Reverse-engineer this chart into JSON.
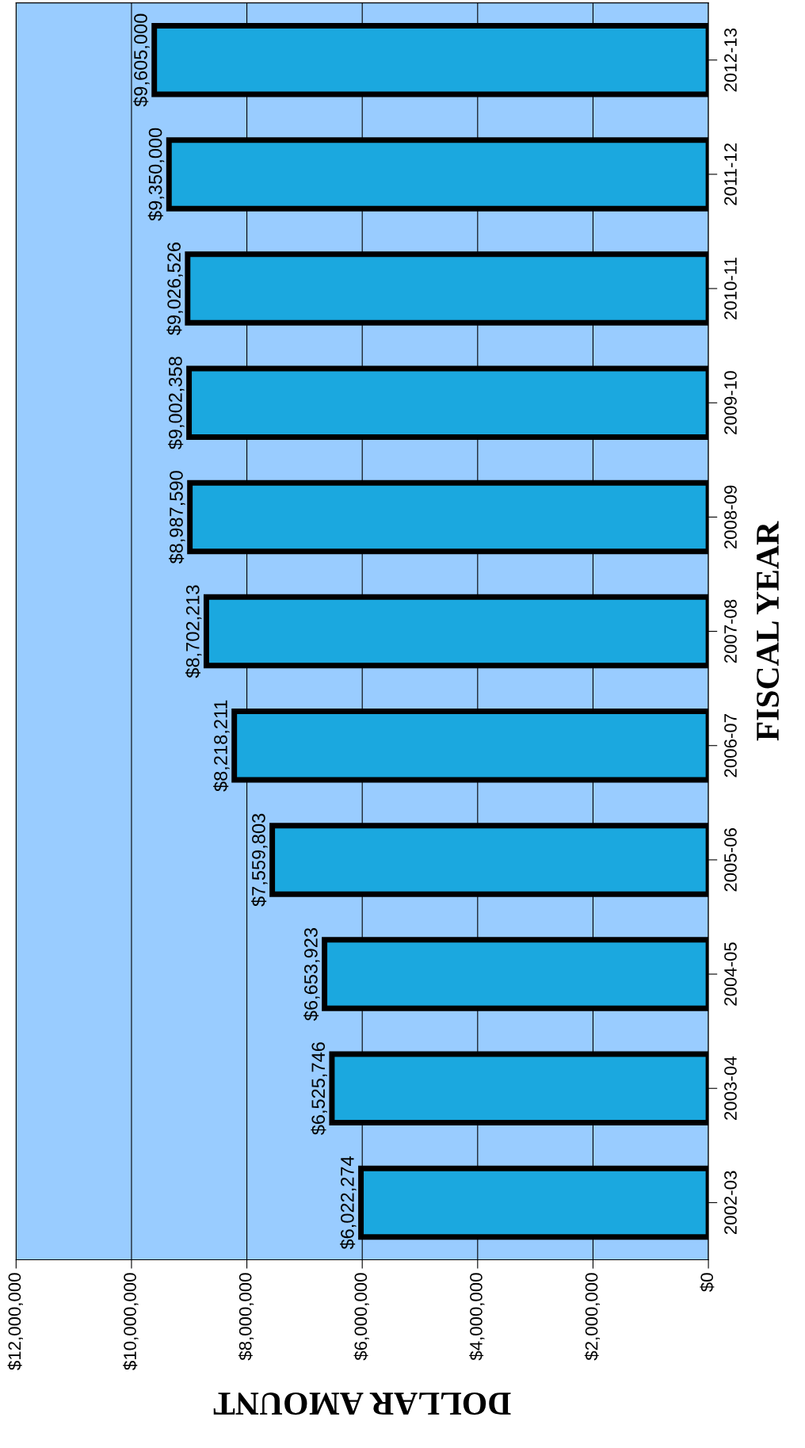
{
  "chart_data": {
    "type": "bar",
    "orientation": "horizontal",
    "xlabel": "DOLLAR AMOUNT",
    "ylabel": "FISCAL YEAR",
    "categories": [
      "2012-13",
      "2011-12",
      "2010-11",
      "2009-10",
      "2008-09",
      "2007-08",
      "2006-07",
      "2005-06",
      "2004-05",
      "2003-04",
      "2002-03"
    ],
    "values": [
      9605000,
      9350000,
      9026526,
      9002358,
      8987590,
      8702213,
      8218211,
      7559803,
      6653923,
      6525746,
      6022274
    ],
    "value_labels": [
      "$9,605,000",
      "$9,350,000",
      "$9,026,526",
      "$9,002,358",
      "$8,987,590",
      "$8,702,213",
      "$8,218,211",
      "$7,559,803",
      "$6,653,923",
      "$6,525,746",
      "$6,022,274"
    ],
    "color": "#1ba8df",
    "grid": "x",
    "xlim": [
      12000000,
      0
    ],
    "xticks": [
      {
        "value": 12000000,
        "label": "$12,000,000"
      },
      {
        "value": 10000000,
        "label": "$10,000,000"
      },
      {
        "value": 8000000,
        "label": "$8,000,000"
      },
      {
        "value": 6000000,
        "label": "$6,000,000"
      },
      {
        "value": 4000000,
        "label": "$4,000,000"
      },
      {
        "value": 2000000,
        "label": "$2,000,000"
      },
      {
        "value": 0,
        "label": "$0"
      }
    ]
  }
}
